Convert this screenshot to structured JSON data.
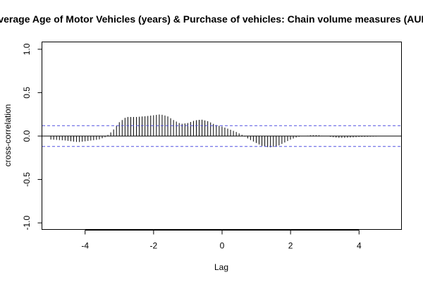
{
  "chart_data": {
    "type": "bar",
    "title": "Average Age of Motor Vehicles (years) & Purchase of vehicles: Chain volume measures (AUD)",
    "xlabel": "Lag",
    "ylabel": "cross-correlation",
    "xlim": [
      -5.25,
      5.25
    ],
    "ylim": [
      -1.08,
      1.08
    ],
    "x_ticks": [
      -4,
      -2,
      0,
      2,
      4
    ],
    "x_tick_labels": [
      "-4",
      "-2",
      "0",
      "2",
      "4"
    ],
    "y_ticks": [
      -1.0,
      -0.5,
      0.0,
      0.5,
      1.0
    ],
    "y_tick_labels": [
      "-1.0",
      "-0.5",
      "0.0",
      "0.5",
      "1.0"
    ],
    "confidence_band": 0.12,
    "lag_range": [
      -5.0,
      5.0
    ],
    "lag_step": 0.0833,
    "profile": [
      [
        -5.0,
        -0.04
      ],
      [
        -4.6,
        -0.05
      ],
      [
        -4.4,
        -0.06
      ],
      [
        -4.2,
        -0.07
      ],
      [
        -4.0,
        -0.06
      ],
      [
        -3.8,
        -0.05
      ],
      [
        -3.6,
        -0.04
      ],
      [
        -3.4,
        -0.01
      ],
      [
        -3.2,
        0.06
      ],
      [
        -3.0,
        0.16
      ],
      [
        -2.8,
        0.22
      ],
      [
        -2.5,
        0.22
      ],
      [
        -2.2,
        0.23
      ],
      [
        -1.8,
        0.25
      ],
      [
        -1.6,
        0.23
      ],
      [
        -1.4,
        0.18
      ],
      [
        -1.2,
        0.14
      ],
      [
        -1.0,
        0.15
      ],
      [
        -0.8,
        0.18
      ],
      [
        -0.6,
        0.19
      ],
      [
        -0.4,
        0.17
      ],
      [
        -0.2,
        0.13
      ],
      [
        0.0,
        0.11
      ],
      [
        0.2,
        0.08
      ],
      [
        0.4,
        0.05
      ],
      [
        0.6,
        0.01
      ],
      [
        0.8,
        -0.04
      ],
      [
        1.0,
        -0.08
      ],
      [
        1.2,
        -0.12
      ],
      [
        1.4,
        -0.13
      ],
      [
        1.6,
        -0.12
      ],
      [
        1.8,
        -0.08
      ],
      [
        2.0,
        -0.04
      ],
      [
        2.2,
        -0.01
      ],
      [
        2.4,
        0.0
      ],
      [
        2.6,
        0.01
      ],
      [
        2.8,
        0.01
      ],
      [
        3.0,
        0.0
      ],
      [
        3.2,
        -0.01
      ],
      [
        3.4,
        -0.02
      ],
      [
        3.6,
        -0.02
      ],
      [
        4.0,
        -0.01
      ],
      [
        4.5,
        -0.005
      ],
      [
        5.0,
        0.0
      ]
    ],
    "grid": false,
    "legend": "none",
    "colors": {
      "bars": "#000000",
      "band": "#5050e0",
      "axis": "#000000"
    }
  }
}
